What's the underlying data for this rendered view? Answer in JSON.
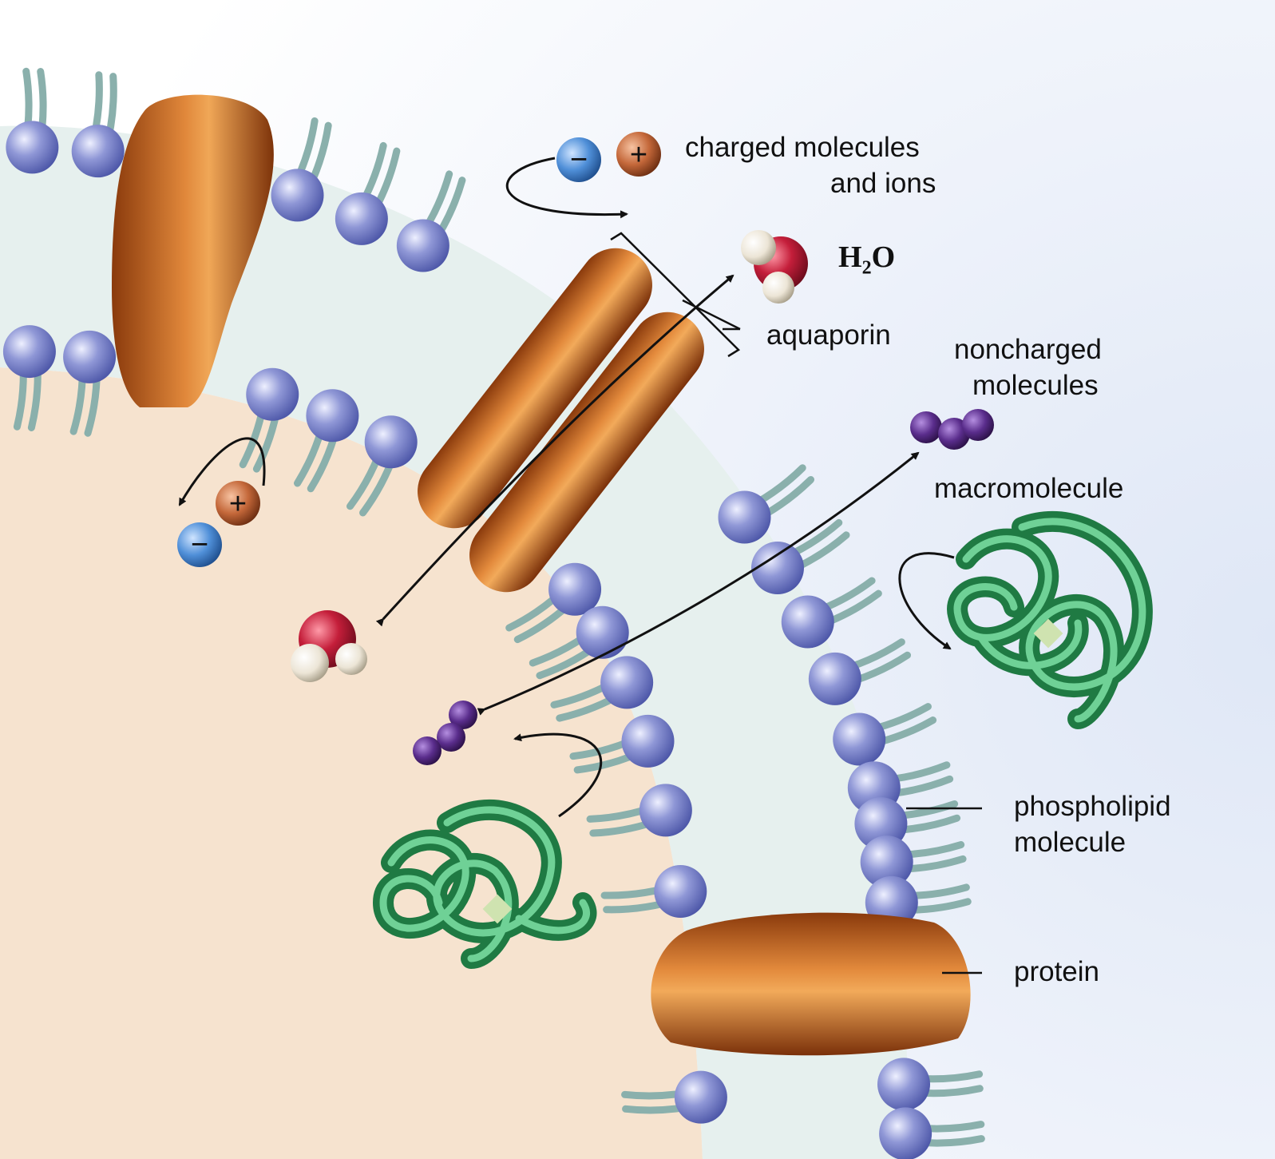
{
  "labels": {
    "charged_line1": "charged molecules",
    "charged_line2": "and ions",
    "h2o_prefix": "H",
    "h2o_sub": "2",
    "h2o_suffix": "O",
    "aquaporin": "aquaporin",
    "noncharged_line1": "noncharged",
    "noncharged_line2": "molecules",
    "macromolecule": "macromolecule",
    "phospholipid_line1": "phospholipid",
    "phospholipid_line2": "molecule",
    "protein": "protein"
  },
  "ion_signs": {
    "minus": "−",
    "plus": "+"
  },
  "colors": {
    "background_outside": "#e9eef8",
    "cytoplasm": "#f6e3cf",
    "lipid_head": "#8f97d6",
    "lipid_tail": "#8ab0ac",
    "membrane_core": "#e6f0ee",
    "protein": "#c0621c",
    "macromolecule": "#2e9a58",
    "noncharged_molecule": "#5a2d8c",
    "water_oxygen": "#c41e3a",
    "water_hydrogen": "#f2ede2",
    "ion_negative": "#4f8fd8",
    "ion_positive": "#c4683a"
  }
}
